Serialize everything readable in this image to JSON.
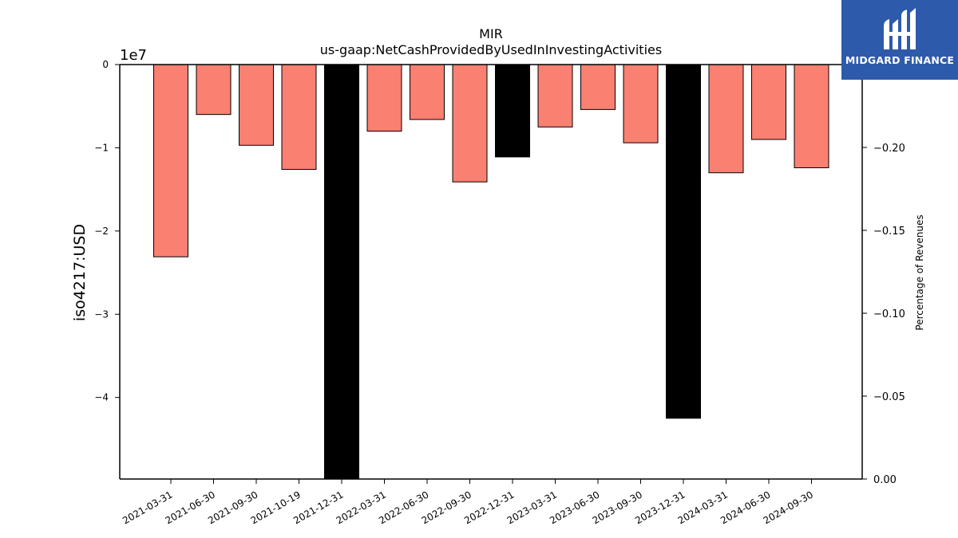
{
  "chart_data": {
    "type": "bar",
    "title": "MIR",
    "subtitle": "us-gaap:NetCashProvidedByUsedInInvestingActivities",
    "ylabel": "iso4217:USD",
    "y2label": "Percentage of Revenues",
    "offset_label": "1e7",
    "categories": [
      "2021-03-31",
      "2021-06-30",
      "2021-09-30",
      "2021-10-19",
      "2021-12-31",
      "2022-03-31",
      "2022-06-30",
      "2022-09-30",
      "2022-12-31",
      "2023-03-31",
      "2023-06-30",
      "2023-09-30",
      "2023-12-31",
      "2024-03-31",
      "2024-06-30",
      "2024-09-30"
    ],
    "values": [
      -2.31,
      -0.6,
      -0.97,
      -1.26,
      -5.1,
      -0.8,
      -0.66,
      -1.41,
      -1.11,
      -0.75,
      -0.54,
      -0.94,
      -4.25,
      -1.3,
      -0.9,
      -1.24
    ],
    "value_scale": 10000000.0,
    "annual": [
      false,
      false,
      false,
      false,
      true,
      false,
      false,
      false,
      true,
      false,
      false,
      false,
      true,
      false,
      false,
      false
    ],
    "colors": {
      "quarter": "#fa8072",
      "annual": "#000000"
    },
    "ylim": [
      -4.98,
      0
    ],
    "yticks": [
      0,
      -1,
      -2,
      -3,
      -4
    ],
    "ytick_labels": [
      "0",
      "−1",
      "−2",
      "−3",
      "−4"
    ],
    "y2lim": [
      0,
      -0.25
    ],
    "y2ticks": [
      -0.2,
      -0.15,
      -0.1,
      -0.05,
      0
    ],
    "y2tick_labels": [
      "−0.20",
      "−0.15",
      "−0.10",
      "−0.05",
      "0.00"
    ],
    "grid": false
  },
  "logo": {
    "text": "MIDGARD FINANCE"
  }
}
